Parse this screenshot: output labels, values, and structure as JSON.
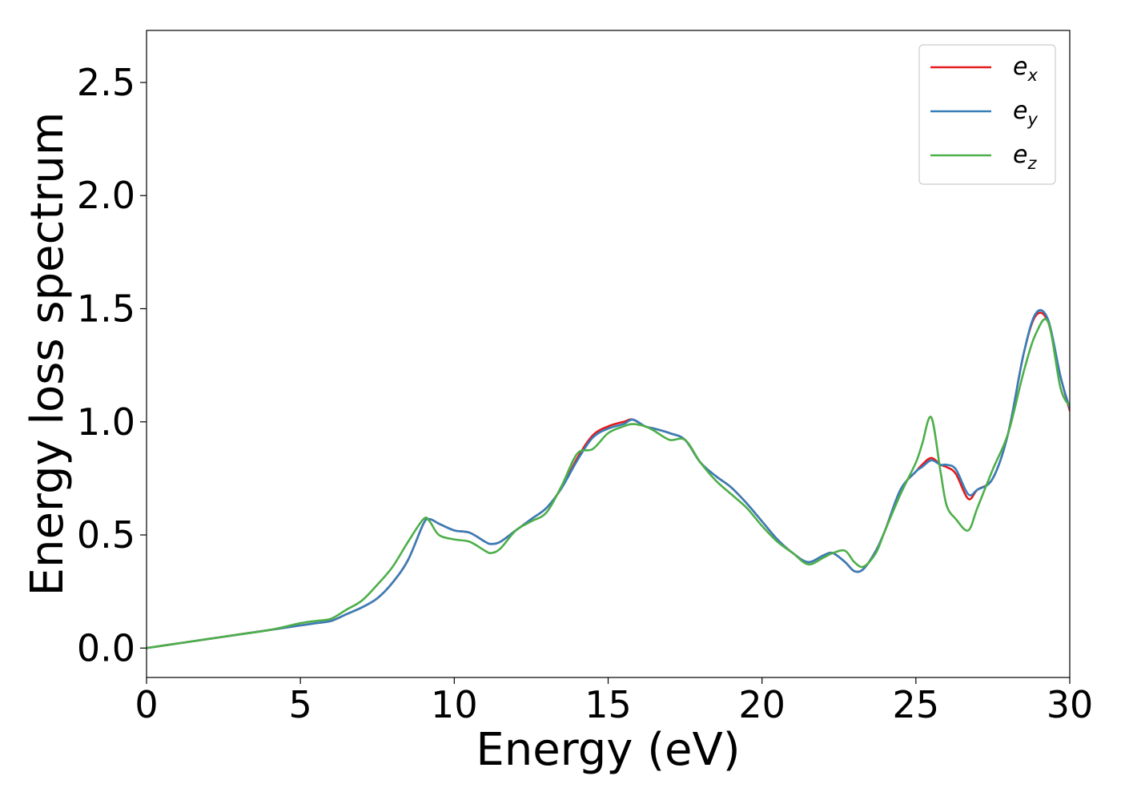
{
  "chart_data": {
    "type": "line",
    "title": "",
    "xlabel": "Energy (eV)",
    "ylabel": "Energy loss spectrum",
    "xlim": [
      0,
      30
    ],
    "ylim": [
      -0.13,
      2.73
    ],
    "xticks": [
      0,
      5,
      10,
      15,
      20,
      25,
      30
    ],
    "yticks": [
      0.0,
      0.5,
      1.0,
      1.5,
      2.0,
      2.5
    ],
    "xtick_labels": [
      "0",
      "5",
      "10",
      "15",
      "20",
      "25",
      "30"
    ],
    "ytick_labels": [
      "0.0",
      "0.5",
      "1.0",
      "1.5",
      "2.0",
      "2.5"
    ],
    "grid": false,
    "legend_position": "top-right",
    "series": [
      {
        "name": "e_x",
        "label_base": "e",
        "label_sub": "x",
        "color": "#e41a1c",
        "x": [
          0,
          1,
          2,
          2.5,
          3,
          4,
          5,
          5.5,
          6,
          6.5,
          7,
          7.5,
          8,
          8.5,
          9,
          9.2,
          9.5,
          10,
          10.5,
          11,
          11.2,
          11.5,
          12,
          12.5,
          13,
          13.5,
          14,
          14.5,
          15,
          15.5,
          15.8,
          16.2,
          16.5,
          17,
          17.5,
          18,
          18.5,
          19,
          19.5,
          20,
          20.5,
          21,
          21.5,
          22,
          22.3,
          22.7,
          23,
          23.3,
          23.7,
          24,
          24.5,
          25,
          25.2,
          25.5,
          25.8,
          26,
          26.3,
          26.7,
          27,
          27.5,
          28,
          28.5,
          28.9,
          29.3,
          29.7,
          30
        ],
        "values": [
          0.0,
          0.02,
          0.04,
          0.05,
          0.06,
          0.08,
          0.1,
          0.11,
          0.12,
          0.15,
          0.18,
          0.22,
          0.29,
          0.39,
          0.55,
          0.57,
          0.55,
          0.52,
          0.51,
          0.47,
          0.46,
          0.47,
          0.52,
          0.57,
          0.62,
          0.71,
          0.84,
          0.94,
          0.98,
          1.0,
          1.01,
          0.98,
          0.97,
          0.95,
          0.92,
          0.82,
          0.76,
          0.71,
          0.64,
          0.56,
          0.48,
          0.42,
          0.38,
          0.41,
          0.42,
          0.38,
          0.34,
          0.35,
          0.43,
          0.52,
          0.7,
          0.78,
          0.81,
          0.84,
          0.81,
          0.8,
          0.77,
          0.66,
          0.7,
          0.75,
          0.95,
          1.3,
          1.47,
          1.44,
          1.2,
          1.05
        ]
      },
      {
        "name": "e_y",
        "label_base": "e",
        "label_sub": "y",
        "color": "#377eb8",
        "x": [
          0,
          1,
          2,
          2.5,
          3,
          4,
          5,
          5.5,
          6,
          6.5,
          7,
          7.5,
          8,
          8.5,
          9,
          9.2,
          9.5,
          10,
          10.5,
          11,
          11.2,
          11.5,
          12,
          12.5,
          13,
          13.5,
          14,
          14.5,
          15,
          15.5,
          15.8,
          16.2,
          16.5,
          17,
          17.5,
          18,
          18.5,
          19,
          19.5,
          20,
          20.5,
          21,
          21.5,
          22,
          22.3,
          22.7,
          23,
          23.3,
          23.7,
          24,
          24.5,
          25,
          25.2,
          25.5,
          25.8,
          26,
          26.3,
          26.7,
          27,
          27.5,
          28,
          28.5,
          28.9,
          29.3,
          29.7,
          30
        ],
        "values": [
          0.0,
          0.02,
          0.04,
          0.05,
          0.06,
          0.08,
          0.1,
          0.11,
          0.12,
          0.15,
          0.18,
          0.22,
          0.29,
          0.39,
          0.55,
          0.57,
          0.55,
          0.52,
          0.51,
          0.47,
          0.46,
          0.47,
          0.52,
          0.57,
          0.62,
          0.71,
          0.83,
          0.93,
          0.97,
          0.99,
          1.01,
          0.98,
          0.97,
          0.95,
          0.92,
          0.82,
          0.76,
          0.71,
          0.64,
          0.56,
          0.48,
          0.42,
          0.38,
          0.41,
          0.42,
          0.38,
          0.34,
          0.35,
          0.43,
          0.52,
          0.7,
          0.78,
          0.8,
          0.83,
          0.81,
          0.81,
          0.79,
          0.68,
          0.7,
          0.75,
          0.95,
          1.3,
          1.48,
          1.45,
          1.2,
          1.06
        ]
      },
      {
        "name": "e_z",
        "label_base": "e",
        "label_sub": "z",
        "color": "#4daf4a",
        "x": [
          0,
          1,
          2,
          2.5,
          3,
          4,
          5,
          5.5,
          6,
          6.5,
          7,
          7.5,
          8,
          8.5,
          9,
          9.2,
          9.5,
          10,
          10.5,
          11,
          11.2,
          11.5,
          12,
          12.5,
          13,
          13.5,
          14,
          14.5,
          15,
          15.5,
          15.8,
          16.2,
          16.5,
          17,
          17.5,
          18,
          18.5,
          19,
          19.5,
          20,
          20.5,
          21,
          21.5,
          22,
          22.3,
          22.7,
          23,
          23.3,
          23.7,
          24,
          24.5,
          25,
          25.2,
          25.5,
          25.8,
          26,
          26.3,
          26.7,
          27,
          27.5,
          28,
          28.5,
          28.9,
          29.3,
          29.7,
          30
        ],
        "values": [
          0.0,
          0.02,
          0.04,
          0.05,
          0.06,
          0.08,
          0.11,
          0.12,
          0.13,
          0.17,
          0.21,
          0.28,
          0.36,
          0.47,
          0.57,
          0.56,
          0.5,
          0.48,
          0.47,
          0.43,
          0.42,
          0.44,
          0.52,
          0.56,
          0.6,
          0.72,
          0.86,
          0.88,
          0.95,
          0.98,
          0.99,
          0.98,
          0.96,
          0.92,
          0.92,
          0.82,
          0.74,
          0.68,
          0.62,
          0.54,
          0.47,
          0.42,
          0.37,
          0.4,
          0.42,
          0.43,
          0.38,
          0.36,
          0.42,
          0.52,
          0.68,
          0.82,
          0.9,
          1.02,
          0.78,
          0.63,
          0.57,
          0.52,
          0.62,
          0.79,
          0.95,
          1.22,
          1.39,
          1.44,
          1.15,
          1.07
        ]
      }
    ]
  }
}
